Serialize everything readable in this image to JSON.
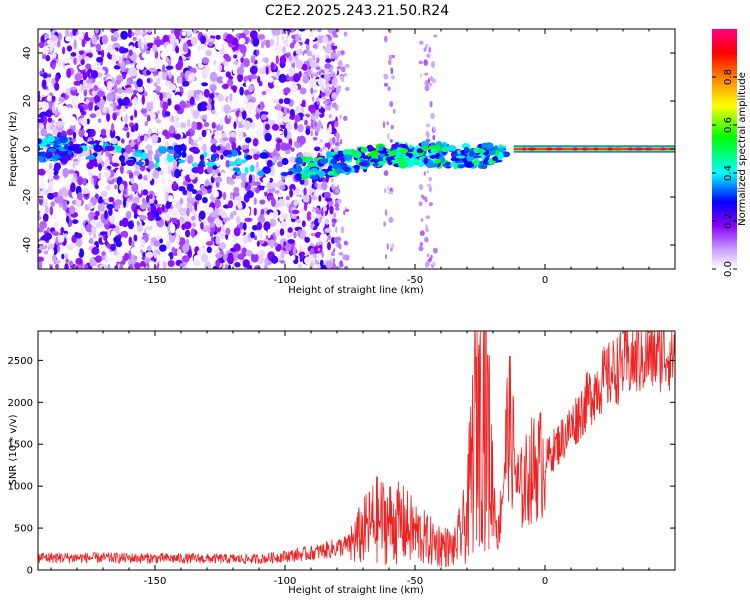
{
  "title": "C2E2.2025.243.21.50.R24",
  "chart_data": [
    {
      "type": "heatmap",
      "name": "spectrogram",
      "xlabel": "Height of straight line (km)",
      "ylabel": "Frequency (Hz)",
      "xlim": [
        -195,
        50
      ],
      "ylim": [
        -50,
        50
      ],
      "xticks": [
        -150,
        -100,
        -50,
        0
      ],
      "yticks": [
        -40,
        -20,
        0,
        20,
        40
      ],
      "colorbar": {
        "label": "Normalized spectral amplitude",
        "range": [
          0,
          1
        ],
        "ticks": [
          0.0,
          0.2,
          0.4,
          0.6,
          0.8
        ],
        "tick_labels": [
          "0.0",
          "0.2",
          "0.4",
          "0.6",
          "0.8"
        ],
        "colormap_stops": [
          "#ffffff",
          "#8a00ff",
          "#0000ff",
          "#00ffff",
          "#00ff00",
          "#ffff00",
          "#ff8000",
          "#ff0000",
          "#ff0080"
        ]
      },
      "description_points": {
        "scatter_region_x": [
          -195,
          -80
        ],
        "signal_band": [
          {
            "x": -190,
            "f": 0
          },
          {
            "x": -90,
            "f": -8
          },
          {
            "x": -70,
            "f": -4
          },
          {
            "x": -50,
            "f": -2
          },
          {
            "x": -30,
            "f": -3
          },
          {
            "x": -15,
            "f": -2
          },
          {
            "x": -10,
            "f": 0
          },
          {
            "x": 0,
            "f": 0
          },
          {
            "x": 50,
            "f": 0
          }
        ]
      }
    },
    {
      "type": "line",
      "name": "snr",
      "xlabel": "Height of straight line (km)",
      "ylabel": "SNR (10 * v/v)",
      "xlim": [
        -195,
        50
      ],
      "ylim": [
        0,
        2850
      ],
      "xticks": [
        -150,
        -100,
        -50,
        0
      ],
      "yticks": [
        0,
        500,
        1000,
        1500,
        2000,
        2500
      ],
      "series": [
        {
          "name": "SNR",
          "color": "#ee2222",
          "envelope": [
            {
              "x": -195,
              "y": 150
            },
            {
              "x": -150,
              "y": 140
            },
            {
              "x": -110,
              "y": 130
            },
            {
              "x": -90,
              "y": 200
            },
            {
              "x": -75,
              "y": 300
            },
            {
              "x": -65,
              "y": 600
            },
            {
              "x": -55,
              "y": 550
            },
            {
              "x": -45,
              "y": 350
            },
            {
              "x": -35,
              "y": 250
            },
            {
              "x": -30,
              "y": 600
            },
            {
              "x": -27,
              "y": 1700
            },
            {
              "x": -24,
              "y": 2700
            },
            {
              "x": -21,
              "y": 1200
            },
            {
              "x": -18,
              "y": 400
            },
            {
              "x": -14,
              "y": 1800
            },
            {
              "x": -10,
              "y": 900
            },
            {
              "x": -5,
              "y": 1200
            },
            {
              "x": 0,
              "y": 1300
            },
            {
              "x": 10,
              "y": 1700
            },
            {
              "x": 20,
              "y": 2200
            },
            {
              "x": 30,
              "y": 2450
            },
            {
              "x": 40,
              "y": 2550
            },
            {
              "x": 50,
              "y": 2600
            }
          ]
        }
      ]
    }
  ]
}
